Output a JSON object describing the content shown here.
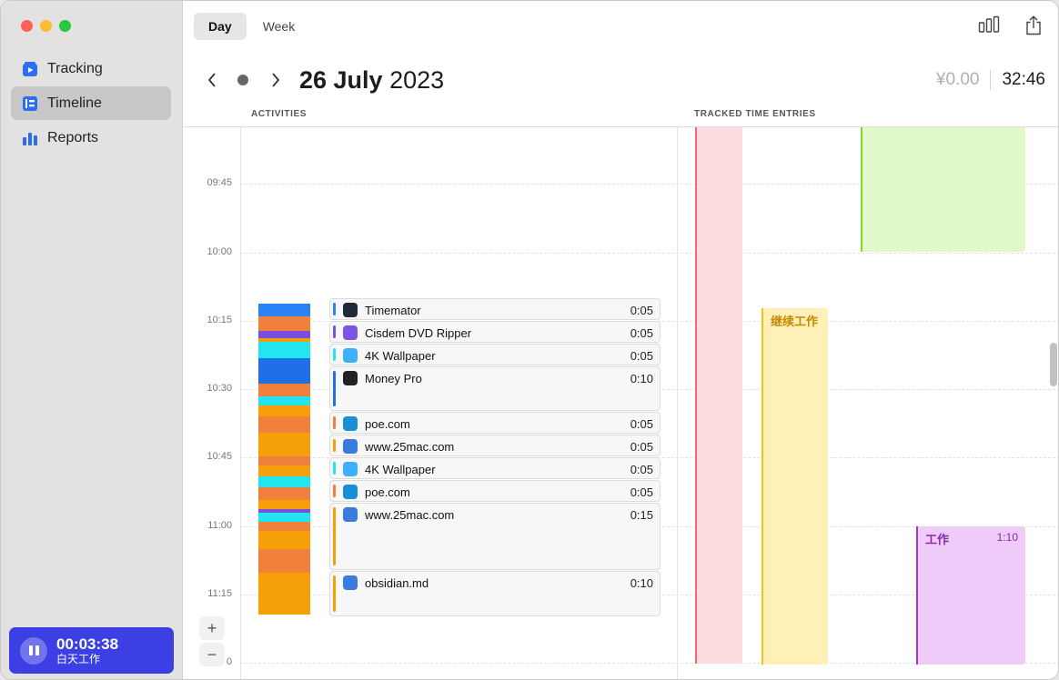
{
  "window": {
    "traffic_lights": [
      "close",
      "minimize",
      "zoom"
    ]
  },
  "sidebar": {
    "items": [
      {
        "label": "Tracking",
        "icon": "tracking-icon",
        "active": false
      },
      {
        "label": "Timeline",
        "icon": "timeline-icon",
        "active": true
      },
      {
        "label": "Reports",
        "icon": "reports-icon",
        "active": false
      }
    ],
    "timer": {
      "time": "00:03:38",
      "label": "白天工作"
    }
  },
  "toolbar": {
    "tabs": [
      {
        "label": "Day",
        "selected": true
      },
      {
        "label": "Week",
        "selected": false
      }
    ]
  },
  "datebar": {
    "day_month": "26 July",
    "year": "2023",
    "earnings": "¥0.00",
    "total": "32:46"
  },
  "columns": {
    "activities": "ACTIVITIES",
    "tracked": "TRACKED TIME ENTRIES"
  },
  "hours": [
    "09:45",
    "10:00",
    "10:15",
    "10:30",
    "10:45",
    "11:00",
    "11:15",
    "0"
  ],
  "activities": [
    {
      "name": "Timemator",
      "duration": "0:05",
      "color": "#2a82f3",
      "icon_bg": "#1f2a3a"
    },
    {
      "name": "Cisdem DVD Ripper",
      "duration": "0:05",
      "color": "#7a4fe0",
      "icon_bg": "#7a55e6"
    },
    {
      "name": "4K Wallpaper",
      "duration": "0:05",
      "color": "#22e5f0",
      "icon_bg": "#3db0ff"
    },
    {
      "name": "Money Pro",
      "duration": "0:10",
      "color": "#1f6fe6",
      "icon_bg": "#222222"
    },
    {
      "name": "poe.com",
      "duration": "0:05",
      "color": "#f0803c",
      "icon_bg": "#1a8fd8"
    },
    {
      "name": "www.25mac.com",
      "duration": "0:05",
      "color": "#f5a00a",
      "icon_bg": "#3a7be0"
    },
    {
      "name": "4K Wallpaper",
      "duration": "0:05",
      "color": "#22e5f0",
      "icon_bg": "#3db0ff"
    },
    {
      "name": "poe.com",
      "duration": "0:05",
      "color": "#f0803c",
      "icon_bg": "#1a8fd8"
    },
    {
      "name": "www.25mac.com",
      "duration": "0:15",
      "color": "#f5a00a",
      "icon_bg": "#3a7be0"
    },
    {
      "name": "obsidian.md",
      "duration": "0:10",
      "color": "#f5a00a",
      "icon_bg": "#3a7be0"
    }
  ],
  "tracked_entries": [
    {
      "label": "",
      "color": "#fbdde0",
      "edge": "#ee6b78"
    },
    {
      "label": "",
      "color": "#e1f8c8",
      "edge": "#8ad12c"
    },
    {
      "label": "继续工作",
      "color": "#fff0b8",
      "edge": "#f2c21c",
      "text_color": "#c48a00"
    },
    {
      "label": "工作",
      "duration": "1:10",
      "color": "#eecbf8",
      "edge": "#a633cc",
      "text_color": "#8a2aa8"
    }
  ],
  "zoom": {
    "in": "+",
    "out": "−"
  }
}
